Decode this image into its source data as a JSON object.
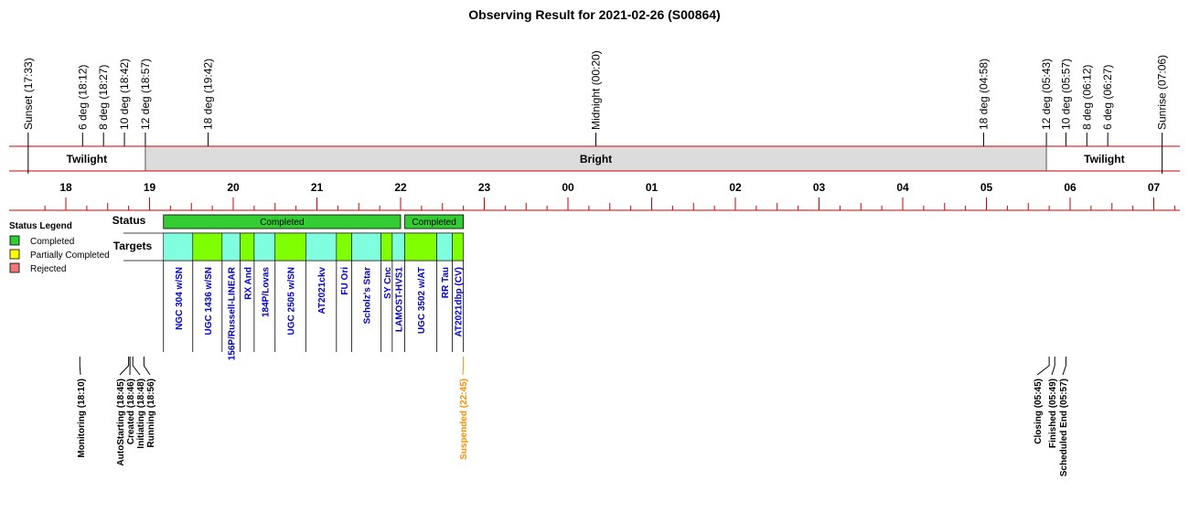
{
  "chart_data": {
    "type": "timeline",
    "title": "Observing Result for 2021-02-26 (S00864)",
    "top_events": [
      {
        "label": "Sunset (17:33)",
        "time": "17:33"
      },
      {
        "label": "6 deg (18:12)",
        "time": "18:12"
      },
      {
        "label": "8 deg (18:27)",
        "time": "18:27"
      },
      {
        "label": "10 deg (18:42)",
        "time": "18:42"
      },
      {
        "label": "12 deg (18:57)",
        "time": "18:57"
      },
      {
        "label": "18 deg (19:42)",
        "time": "19:42"
      },
      {
        "label": "Midnight (00:20)",
        "time": "00:20"
      },
      {
        "label": "18 deg (04:58)",
        "time": "04:58"
      },
      {
        "label": "12 deg (05:43)",
        "time": "05:43"
      },
      {
        "label": "10 deg (05:57)",
        "time": "05:57"
      },
      {
        "label": "8 deg (06:12)",
        "time": "06:12"
      },
      {
        "label": "6 deg (06:27)",
        "time": "06:27"
      },
      {
        "label": "Sunrise (07:06)",
        "time": "07:06"
      }
    ],
    "bands": [
      {
        "label": "Twilight",
        "start": "17:33",
        "end": "18:57",
        "fill": "#ffffff"
      },
      {
        "label": "Bright",
        "start": "18:57",
        "end": "05:43",
        "fill": "#dcdcdc"
      },
      {
        "label": "Twilight",
        "start": "05:43",
        "end": "07:06",
        "fill": "#ffffff"
      }
    ],
    "hour_ticks": [
      "18",
      "19",
      "20",
      "21",
      "22",
      "23",
      "00",
      "01",
      "02",
      "03",
      "04",
      "05",
      "06",
      "07"
    ],
    "status_title": "Status",
    "targets_title": "Targets",
    "status_bars": [
      {
        "label": "Completed",
        "start": "19:10",
        "end": "22:00",
        "status": "Completed"
      },
      {
        "label": "Completed",
        "start": "22:03",
        "end": "22:45",
        "status": "Completed"
      }
    ],
    "targets": [
      {
        "name": "NGC 304 w/SN",
        "start": "19:10",
        "end": "19:31",
        "fill": "#80ffdf"
      },
      {
        "name": "UGC 1436 w/SN",
        "start": "19:31",
        "end": "19:52",
        "fill": "#80ff00"
      },
      {
        "name": "156P/Russell-LINEAR",
        "start": "19:52",
        "end": "20:05",
        "fill": "#80ffdf"
      },
      {
        "name": "RX And",
        "start": "20:05",
        "end": "20:15",
        "fill": "#80ff00"
      },
      {
        "name": "184P/Lovas",
        "start": "20:15",
        "end": "20:30",
        "fill": "#80ffdf"
      },
      {
        "name": "UGC 2505 w/SN",
        "start": "20:30",
        "end": "20:52",
        "fill": "#80ff00"
      },
      {
        "name": "AT2021ckv",
        "start": "20:52",
        "end": "21:14",
        "fill": "#80ffdf"
      },
      {
        "name": "FU Ori",
        "start": "21:14",
        "end": "21:25",
        "fill": "#80ff00"
      },
      {
        "name": "Scholz's Star",
        "start": "21:25",
        "end": "21:46",
        "fill": "#80ffdf"
      },
      {
        "name": "SY Cnc",
        "start": "21:46",
        "end": "21:54",
        "fill": "#80ff00"
      },
      {
        "name": "LAMOST-HVS1",
        "start": "21:54",
        "end": "22:03",
        "fill": "#80ffdf"
      },
      {
        "name": "UGC 3502 w/AT",
        "start": "22:03",
        "end": "22:26",
        "fill": "#80ff00"
      },
      {
        "name": "RR Tau",
        "start": "22:26",
        "end": "22:37",
        "fill": "#80ffdf"
      },
      {
        "name": "AT2021dbp (CV)",
        "start": "22:37",
        "end": "22:45",
        "fill": "#80ff00"
      }
    ],
    "legend": {
      "title": "Status Legend",
      "items": [
        {
          "label": "Completed",
          "color": "#33cc33"
        },
        {
          "label": "Partially Completed",
          "color": "#ffff00"
        },
        {
          "label": "Rejected",
          "color": "#ee7777"
        }
      ]
    },
    "bottom_events": [
      {
        "label": "Monitoring (18:10)",
        "time": "18:10",
        "color": "#000000"
      },
      {
        "label": "AutoStarting (18:45)",
        "time": "18:45",
        "color": "#000000"
      },
      {
        "label": "Created (18:46)",
        "time": "18:46",
        "color": "#000000"
      },
      {
        "label": "Initiating (18:48)",
        "time": "18:48",
        "color": "#000000"
      },
      {
        "label": "Running (18:56)",
        "time": "18:56",
        "color": "#000000"
      },
      {
        "label": "Suspended (22:45)",
        "time": "22:45",
        "color": "#ff8c00"
      },
      {
        "label": "Closing (05:45)",
        "time": "05:45",
        "color": "#000000"
      },
      {
        "label": "Finished (05:49)",
        "time": "05:49",
        "color": "#000000"
      },
      {
        "label": "Scheduled End (05:57)",
        "time": "05:57",
        "color": "#000000"
      }
    ],
    "colors": {
      "axis_line": "#cc0000",
      "status_completed": "#33cc33",
      "target_text": "#0000cc",
      "bright_band": "#dcdcdc"
    }
  }
}
